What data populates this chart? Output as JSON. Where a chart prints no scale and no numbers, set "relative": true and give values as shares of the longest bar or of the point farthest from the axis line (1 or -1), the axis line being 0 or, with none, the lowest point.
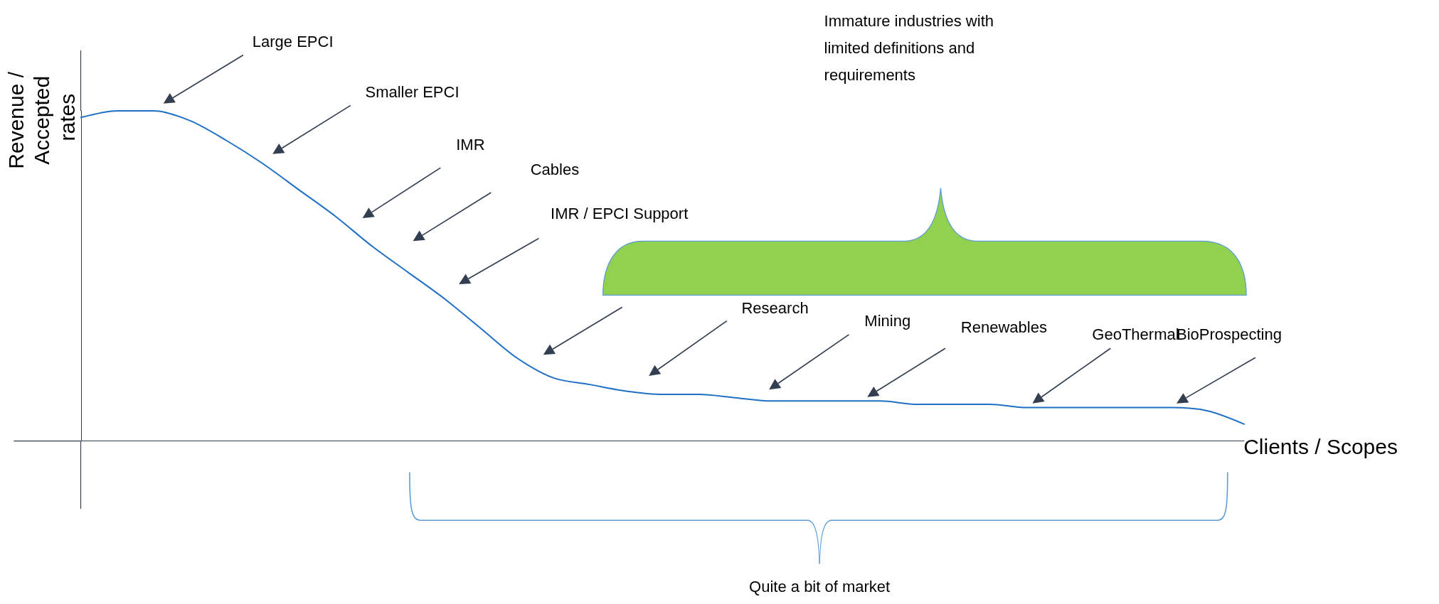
{
  "chart_data": {
    "type": "line",
    "relative": true,
    "xlabel": "Clients / Scopes",
    "ylabel": "Revenue / Accepted rates",
    "color": "#1f6fc5",
    "marker": "none",
    "grid": false,
    "categories": [
      null,
      null,
      null,
      null,
      null,
      null,
      null,
      null,
      null,
      null,
      null,
      null,
      null,
      null,
      null,
      null,
      null,
      null,
      null,
      null,
      null,
      null,
      null,
      null,
      null,
      null,
      null,
      null,
      null,
      null,
      null,
      null,
      null
    ],
    "values": [
      0.98,
      1.0,
      1.0,
      0.97,
      0.91,
      0.84,
      0.76,
      0.68,
      0.59,
      0.51,
      0.43,
      0.34,
      0.25,
      0.19,
      0.17,
      0.15,
      0.14,
      0.14,
      0.13,
      0.12,
      0.12,
      0.12,
      0.12,
      0.11,
      0.11,
      0.11,
      0.1,
      0.1,
      0.1,
      0.1,
      0.1,
      0.09,
      0.05
    ],
    "annotations": [
      "Large EPCI",
      "Smaller EPCI",
      "IMR",
      "Cables",
      "IMR / EPCI Support",
      "Immature industries with limited definitions and requirements",
      "Research",
      "Mining",
      "Renewables",
      "GeoThermal",
      "BioProspecting",
      "Quite a bit of market"
    ]
  }
}
